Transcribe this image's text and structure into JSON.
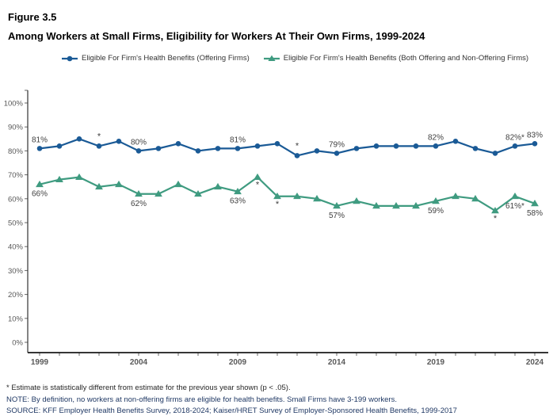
{
  "figure_label": "Figure 3.5",
  "title": "Among Workers at Small Firms, Eligibility for Workers At Their Own Firms, 1999-2024",
  "colors": {
    "series_blue": "#1A5A96",
    "series_teal": "#3F9B80",
    "axis": "#1a1a1a",
    "tick_label": "#595959",
    "data_label": "#404040",
    "footnote_navy": "#1F3864"
  },
  "legend": [
    {
      "label": "Eligible For Firm's Health Benefits (Offering Firms)",
      "color": "#1A5A96",
      "marker": "circle"
    },
    {
      "label": "Eligible For Firm's Health Benefits (Both Offering and Non-Offering Firms)",
      "color": "#3F9B80",
      "marker": "triangle"
    }
  ],
  "chart_data": {
    "type": "line",
    "x": [
      1999,
      2000,
      2001,
      2002,
      2003,
      2004,
      2005,
      2006,
      2007,
      2008,
      2009,
      2010,
      2011,
      2012,
      2013,
      2014,
      2015,
      2016,
      2017,
      2018,
      2019,
      2020,
      2021,
      2022,
      2023,
      2024
    ],
    "x_labeled_ticks": [
      1999,
      2004,
      2009,
      2014,
      2019,
      2024
    ],
    "ylim": [
      0,
      100
    ],
    "y_tick_step": 10,
    "y_tick_suffix": "%",
    "grid": false,
    "legend_position": "top",
    "series": [
      {
        "name": "Eligible For Firm's Health Benefits (Offering Firms)",
        "color": "#1A5A96",
        "marker": "circle",
        "label_side": "above",
        "values": [
          81,
          82,
          85,
          82,
          84,
          80,
          81,
          83,
          80,
          81,
          81,
          82,
          83,
          78,
          80,
          79,
          81,
          82,
          82,
          82,
          82,
          84,
          81,
          79,
          82,
          83
        ],
        "labeled_points": [
          {
            "year": 1999,
            "label": "81%"
          },
          {
            "year": 2004,
            "label": "80%"
          },
          {
            "year": 2009,
            "label": "81%"
          },
          {
            "year": 2014,
            "label": "79%"
          },
          {
            "year": 2019,
            "label": "82%"
          },
          {
            "year": 2023,
            "label": "82%*"
          },
          {
            "year": 2024,
            "label": "83%"
          }
        ],
        "asterisk_years": [
          2002,
          2012
        ]
      },
      {
        "name": "Eligible For Firm's Health Benefits (Both Offering and Non-Offering Firms)",
        "color": "#3F9B80",
        "marker": "triangle",
        "label_side": "below",
        "values": [
          66,
          68,
          69,
          65,
          66,
          62,
          62,
          66,
          62,
          65,
          63,
          69,
          61,
          61,
          60,
          57,
          59,
          57,
          57,
          57,
          59,
          61,
          60,
          55,
          61,
          58
        ],
        "labeled_points": [
          {
            "year": 1999,
            "label": "66%"
          },
          {
            "year": 2004,
            "label": "62%"
          },
          {
            "year": 2009,
            "label": "63%"
          },
          {
            "year": 2014,
            "label": "57%"
          },
          {
            "year": 2019,
            "label": "59%"
          },
          {
            "year": 2023,
            "label": "61%*"
          },
          {
            "year": 2024,
            "label": "58%"
          }
        ],
        "asterisk_years": [
          2010,
          2011,
          2022
        ]
      }
    ]
  },
  "footnotes": [
    "* Estimate is statistically different from estimate for the previous year shown (p < .05).",
    "NOTE: By definition, no workers at non-offering firms are eligible for health benefits. Small Firms have 3-199 workers.",
    "SOURCE: KFF Employer Health Benefits Survey, 2018-2024; Kaiser/HRET Survey of Employer-Sponsored Health Benefits, 1999-2017"
  ]
}
